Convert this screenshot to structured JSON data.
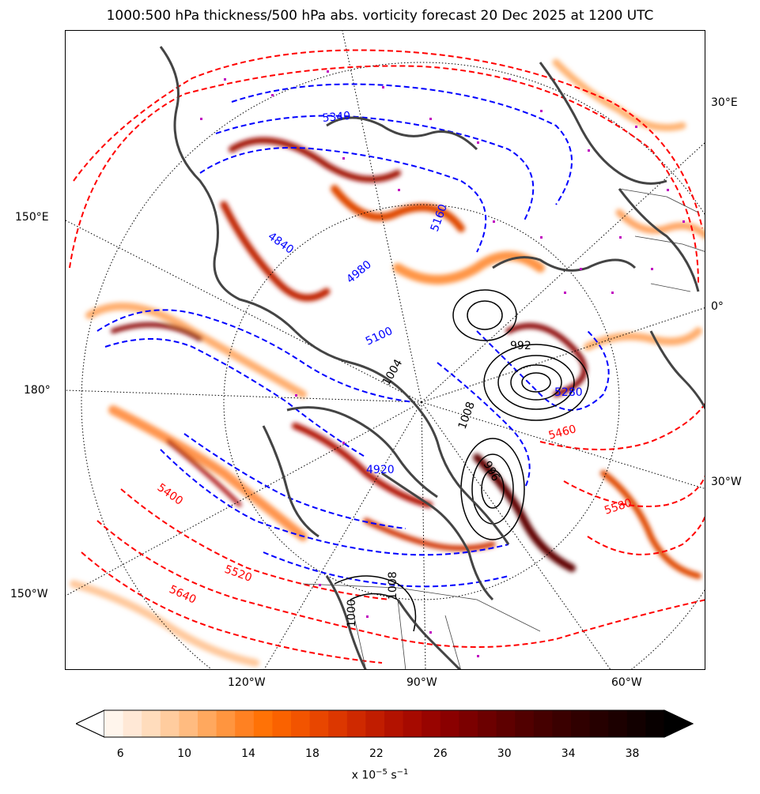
{
  "title": "1000:500 hPa thickness/500 hPa abs. vorticity forecast 20 Dec 2025 at 1200 UTC",
  "longitude_labels": {
    "e30": "30°E",
    "e150": "150°E",
    "zero": "0°",
    "date180": "180°",
    "w30": "30°W",
    "w150": "150°W",
    "w120": "120°W",
    "w90": "90°W",
    "w60": "60°W"
  },
  "colorbar": {
    "ticks": [
      "6",
      "10",
      "14",
      "18",
      "22",
      "26",
      "30",
      "34",
      "38"
    ],
    "unit_base": "x 10",
    "unit_exp": "−5",
    "unit_tail": " s",
    "unit_tail_exp": "−1",
    "colors": [
      "#fff5ec",
      "#ffe8d6",
      "#ffdcbc",
      "#ffcc9e",
      "#ffbb80",
      "#ffa85e",
      "#ff953f",
      "#ff8122",
      "#ff7206",
      "#fa6200",
      "#f25400",
      "#e84600",
      "#dc3700",
      "#cf2900",
      "#c11d00",
      "#b31200",
      "#a60a00",
      "#980400",
      "#8a0000",
      "#7b0000",
      "#6c0000",
      "#5e0000",
      "#510000",
      "#450000",
      "#3a0000",
      "#300000",
      "#260000",
      "#1c0000",
      "#120000",
      "#080000"
    ],
    "under_color": "#ffffff",
    "over_color": "#000000"
  },
  "thickness_labels_red": [
    "5460",
    "5580",
    "5640",
    "5520",
    "5400"
  ],
  "thickness_labels_blue": [
    "5340",
    "4840",
    "5100",
    "4920",
    "5280",
    "5160",
    "4980"
  ],
  "mslp_labels": [
    "992",
    "996",
    "1004",
    "1008",
    "1000",
    "1008"
  ],
  "colors": {
    "thickness_high": "#ff0000",
    "thickness_low": "#0000ff",
    "mslp": "#000000",
    "coastline": "#444444",
    "graticule": "#000000",
    "markers": "#c000c0"
  }
}
